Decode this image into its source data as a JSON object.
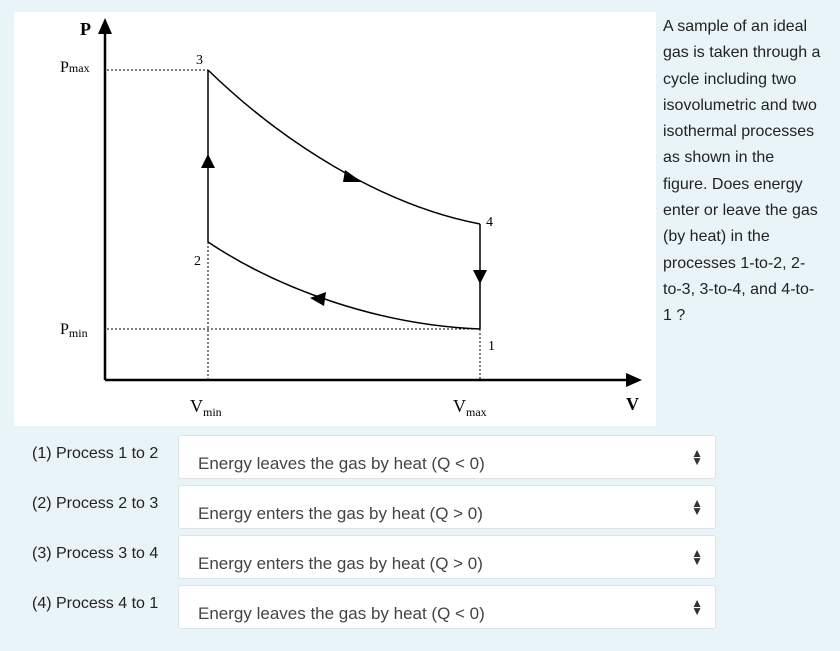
{
  "figure": {
    "p_axis": "P",
    "v_axis": "V",
    "p_max": {
      "symbol": "P",
      "subscript": "max"
    },
    "p_min": {
      "symbol": "P",
      "subscript": "min"
    },
    "v_min": {
      "symbol": "V",
      "subscript": "min"
    },
    "v_max": {
      "symbol": "V",
      "subscript": "max"
    },
    "points": [
      "1",
      "2",
      "3",
      "4"
    ]
  },
  "question": "A sample of an ideal gas is taken through a cycle including two isovolumetric and two isothermal processes as shown in the figure. Does energy enter or leave the gas (by heat) in the processes 1-to-2, 2-to-3, 3-to-4, and 4-to-1 ?",
  "rows": [
    {
      "label": "(1) Process 1 to 2",
      "answer": "Energy leaves the gas by heat (Q < 0)"
    },
    {
      "label": "(2) Process 2 to 3",
      "answer": "Energy enters the gas by heat (Q > 0)"
    },
    {
      "label": "(3) Process 3 to 4",
      "answer": "Energy enters the gas by heat (Q > 0)"
    },
    {
      "label": "(4) Process 4 to 1",
      "answer": "Energy leaves the gas by heat (Q < 0)"
    }
  ]
}
